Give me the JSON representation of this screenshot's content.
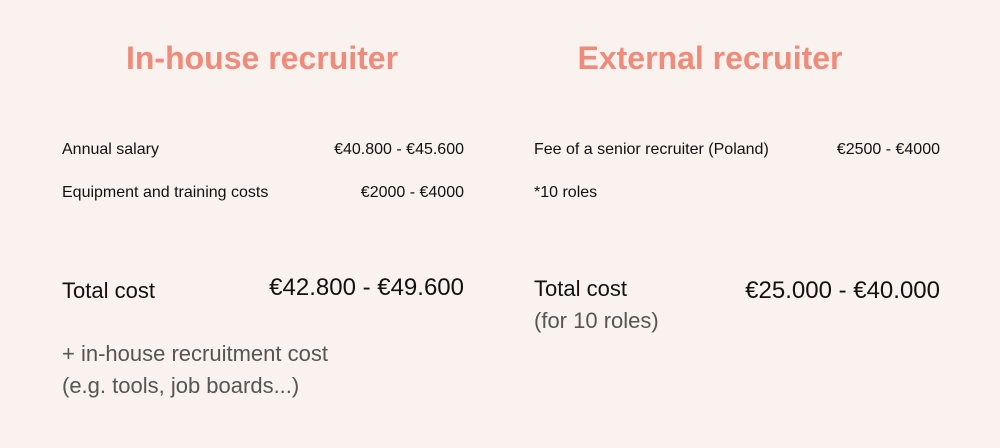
{
  "in_house": {
    "title": "In-house recruiter",
    "rows": [
      {
        "label": "Annual salary",
        "value": "€40.800 - €45.600"
      },
      {
        "label": "Equipment and training costs",
        "value": "€2000 - €4000"
      }
    ],
    "total_label": "Total cost",
    "total_value": "€42.800 - €49.600",
    "note_line1": "+ in-house recruitment cost",
    "note_line2": "(e.g. tools, job boards...)"
  },
  "external": {
    "title": "External recruiter",
    "rows": [
      {
        "label": "Fee of a senior recruiter (Poland)",
        "value": "€2500 - €4000"
      },
      {
        "label": "*10 roles",
        "value": ""
      }
    ],
    "total_label": "Total cost",
    "total_sub": "(for 10 roles)",
    "total_value": "€25.000 - €40.000"
  },
  "colors": {
    "background": "#faf2ee",
    "heading": "#ef8b7a",
    "text": "#111111",
    "muted": "#555555"
  }
}
